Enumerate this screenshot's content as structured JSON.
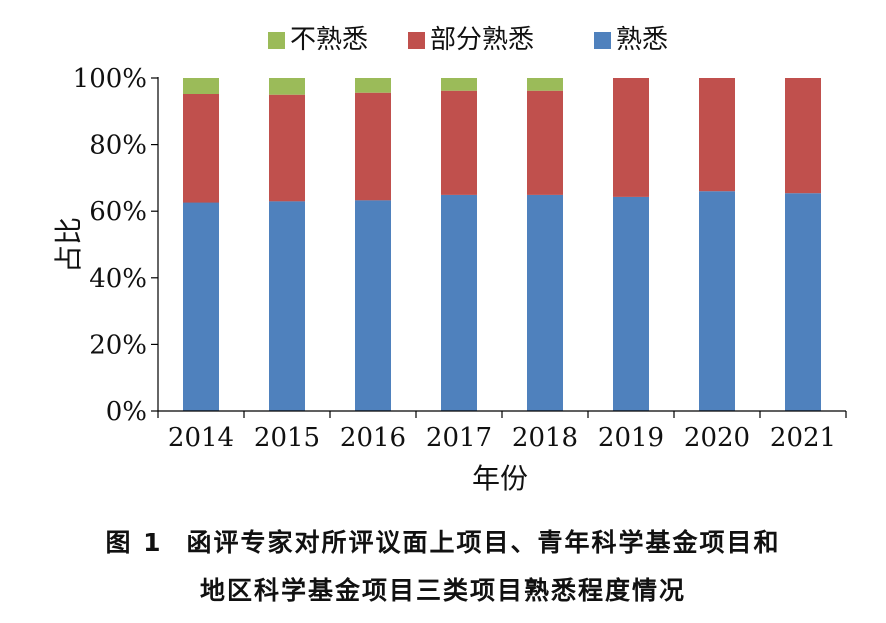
{
  "chart_data": {
    "type": "bar",
    "stacked": true,
    "categories": [
      "2014",
      "2015",
      "2016",
      "2017",
      "2018",
      "2019",
      "2020",
      "2021"
    ],
    "series": [
      {
        "name": "熟悉",
        "color": "#4F81BD",
        "values": [
          62.6,
          63.0,
          63.3,
          64.9,
          64.9,
          64.3,
          66.0,
          65.4
        ]
      },
      {
        "name": "部分熟悉",
        "color": "#C0504D",
        "values": [
          32.6,
          32.0,
          32.3,
          31.3,
          31.3,
          35.7,
          34.0,
          34.6
        ]
      },
      {
        "name": "不熟悉",
        "color": "#9BBB59",
        "values": [
          4.8,
          5.0,
          4.4,
          3.8,
          3.8,
          0,
          0,
          0
        ]
      }
    ],
    "legend_order": [
      "不熟悉",
      "部分熟悉",
      "熟悉"
    ],
    "legend_position": "top",
    "xlabel": "年份",
    "ylabel": "占比",
    "ylim": [
      0,
      100
    ],
    "yticks": [
      "0%",
      "20%",
      "40%",
      "60%",
      "80%",
      "100%"
    ],
    "grid": false
  },
  "caption": {
    "figure_number": "图 1",
    "line1": "函评专家对所评议面上项目、青年科学基金项目和",
    "line2": "地区科学基金项目三类项目熟悉程度情况"
  }
}
